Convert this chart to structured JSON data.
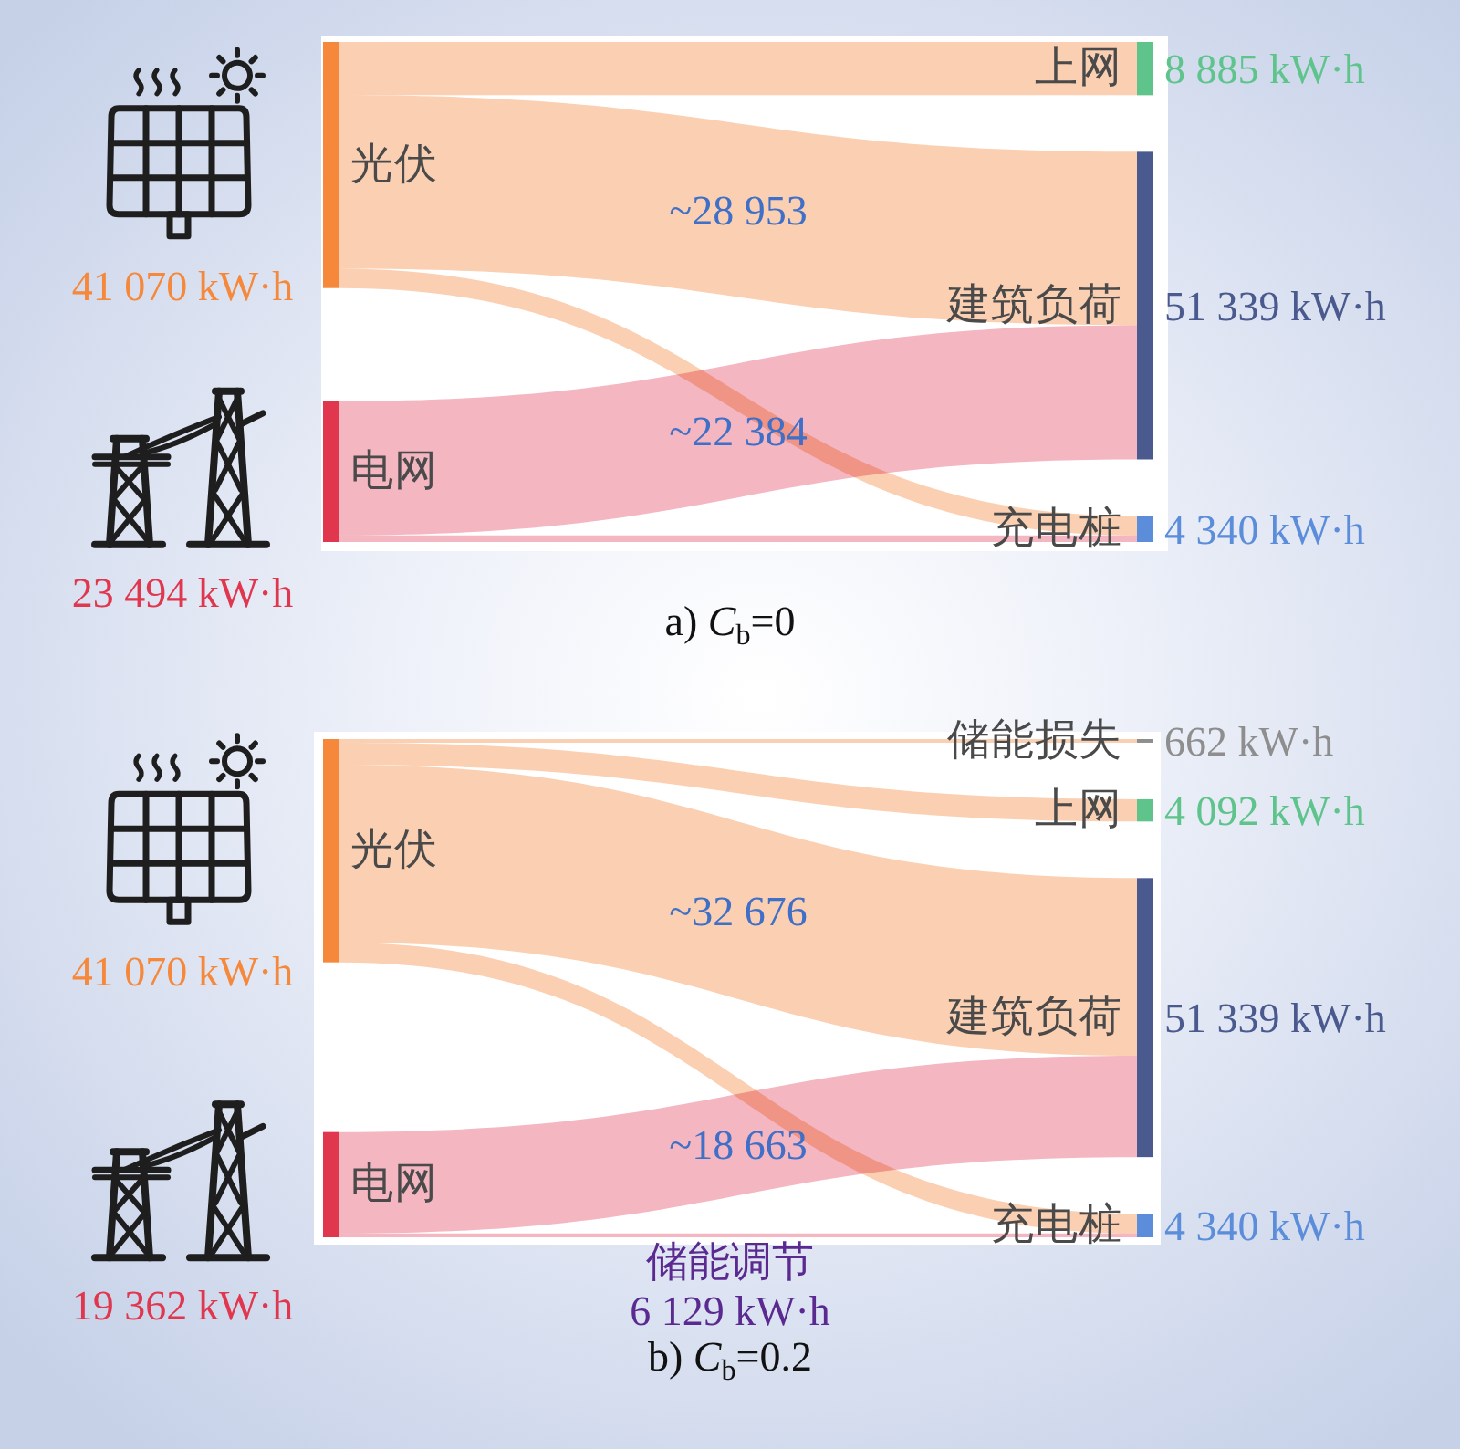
{
  "chart_data": [
    {
      "type": "other",
      "title": "a) *C*$_{b}$=0",
      "categories": [
        "光伏",
        "电网",
        "上网",
        "建筑负荷",
        "充电桩"
      ],
      "values": [
        41070,
        23494,
        8885,
        51339,
        4340
      ],
      "value_labels": [
        "41 070 kW·h",
        "23 494 kW·h",
        "8 885 kW·h",
        "51 339 kW·h",
        "4 340 kW·h"
      ],
      "colors": [
        "#f5883b",
        "#e0374f",
        "#5ec48c",
        "#4b5a8e",
        "#5b8ddb"
      ],
      "series": [
        {
          "color": "#fbd0b2",
          "values": [
            null,
            null,
            null,
            28953,
            null
          ],
          "value_labels": [
            null,
            null,
            null,
            "~28 953",
            null
          ]
        },
        {
          "color": "#f4b6c0",
          "values": [
            null,
            null,
            null,
            22384,
            null
          ],
          "value_labels": [
            null,
            null,
            null,
            "~22 384",
            null
          ]
        }
      ]
    },
    {
      "type": "other",
      "title": "b) *C*$_{b}$=0.2",
      "categories": [
        "光伏",
        "电网",
        "储能损失",
        "上网",
        "建筑负荷",
        "充电桩"
      ],
      "values": [
        41070,
        19362,
        662,
        4092,
        51339,
        4340
      ],
      "value_labels": [
        "41 070 kW·h",
        "19 362 kW·h",
        "662 kW·h",
        "4 092 kW·h",
        "51 339 kW·h",
        "4 340 kW·h"
      ],
      "colors": [
        "#f5883b",
        "#e0374f",
        "#8e8e8e",
        "#5ec48c",
        "#4b5a8e",
        "#5b8ddb"
      ],
      "series": [
        {
          "color": "#fbd0b2",
          "values": [
            null,
            null,
            null,
            null,
            32676,
            null
          ],
          "value_labels": [
            null,
            null,
            null,
            null,
            "~32 676",
            null
          ]
        },
        {
          "color": "#f4b6c0",
          "values": [
            null,
            null,
            null,
            null,
            18663,
            null
          ],
          "value_labels": [
            null,
            null,
            null,
            null,
            "~18 663",
            null
          ]
        }
      ],
      "annotations": [
        "储能调节",
        "6 129 kW·h"
      ]
    }
  ]
}
